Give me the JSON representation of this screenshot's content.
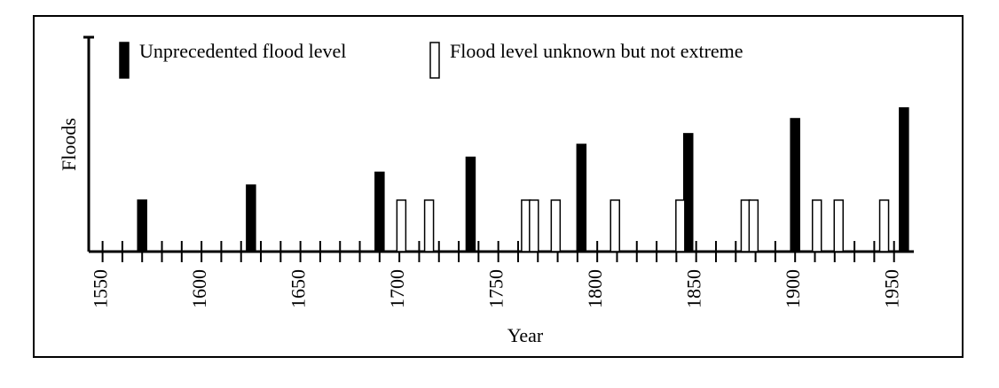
{
  "chart_data": {
    "type": "bar",
    "xlabel": "Year",
    "ylabel": "Floods",
    "xlim": [
      1543,
      1960
    ],
    "ylim": [
      0,
      10
    ],
    "xticks": [
      1550,
      1600,
      1650,
      1700,
      1750,
      1800,
      1850,
      1900,
      1950
    ],
    "xminorticks": [
      1560,
      1570,
      1580,
      1590,
      1610,
      1620,
      1630,
      1640,
      1660,
      1670,
      1680,
      1690,
      1710,
      1720,
      1730,
      1740,
      1760,
      1770,
      1780,
      1790,
      1810,
      1820,
      1830,
      1840,
      1860,
      1870,
      1880,
      1890,
      1910,
      1920,
      1930,
      1940
    ],
    "series": [
      {
        "name": "Unprecedented flood level",
        "color": "#000000",
        "filled": true,
        "x": [
          1570,
          1625,
          1690,
          1736,
          1792,
          1846,
          1900,
          1955
        ],
        "values": [
          2.4,
          3.1,
          3.7,
          4.4,
          5.0,
          5.5,
          6.2,
          6.7
        ]
      },
      {
        "name": "Flood level unknown but not extreme",
        "color": "#000000",
        "filled": false,
        "x": [
          1701,
          1715,
          1764,
          1768,
          1779,
          1809,
          1842,
          1875,
          1879,
          1911,
          1922,
          1945
        ],
        "values": [
          2.4,
          2.4,
          2.4,
          2.4,
          2.4,
          2.4,
          2.4,
          2.4,
          2.4,
          2.4,
          2.4,
          2.4
        ]
      }
    ]
  }
}
